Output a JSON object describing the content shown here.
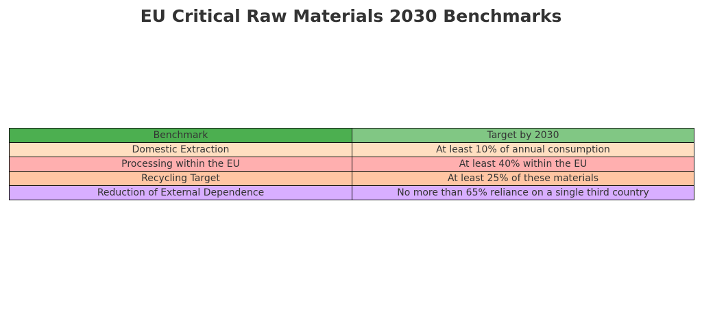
{
  "chart_data": {
    "type": "table",
    "title": "EU Critical Raw Materials 2030 Benchmarks",
    "columns": [
      {
        "label": "Benchmark",
        "color": "#4caf50"
      },
      {
        "label": "Target by 2030",
        "color": "#81c784"
      }
    ],
    "rows": [
      {
        "cells": [
          "Domestic Extraction",
          "At least 10% of annual consumption"
        ],
        "color": "#ffdfc1"
      },
      {
        "cells": [
          "Processing within the EU",
          "At least 40% within the EU"
        ],
        "color": "#ffafaf"
      },
      {
        "cells": [
          "Recycling Target",
          "At least 25% of these materials"
        ],
        "color": "#ffc6a3"
      },
      {
        "cells": [
          "Reduction of External Dependence",
          "No more than 65% reliance on a single third country"
        ],
        "color": "#d8aeff"
      }
    ]
  }
}
